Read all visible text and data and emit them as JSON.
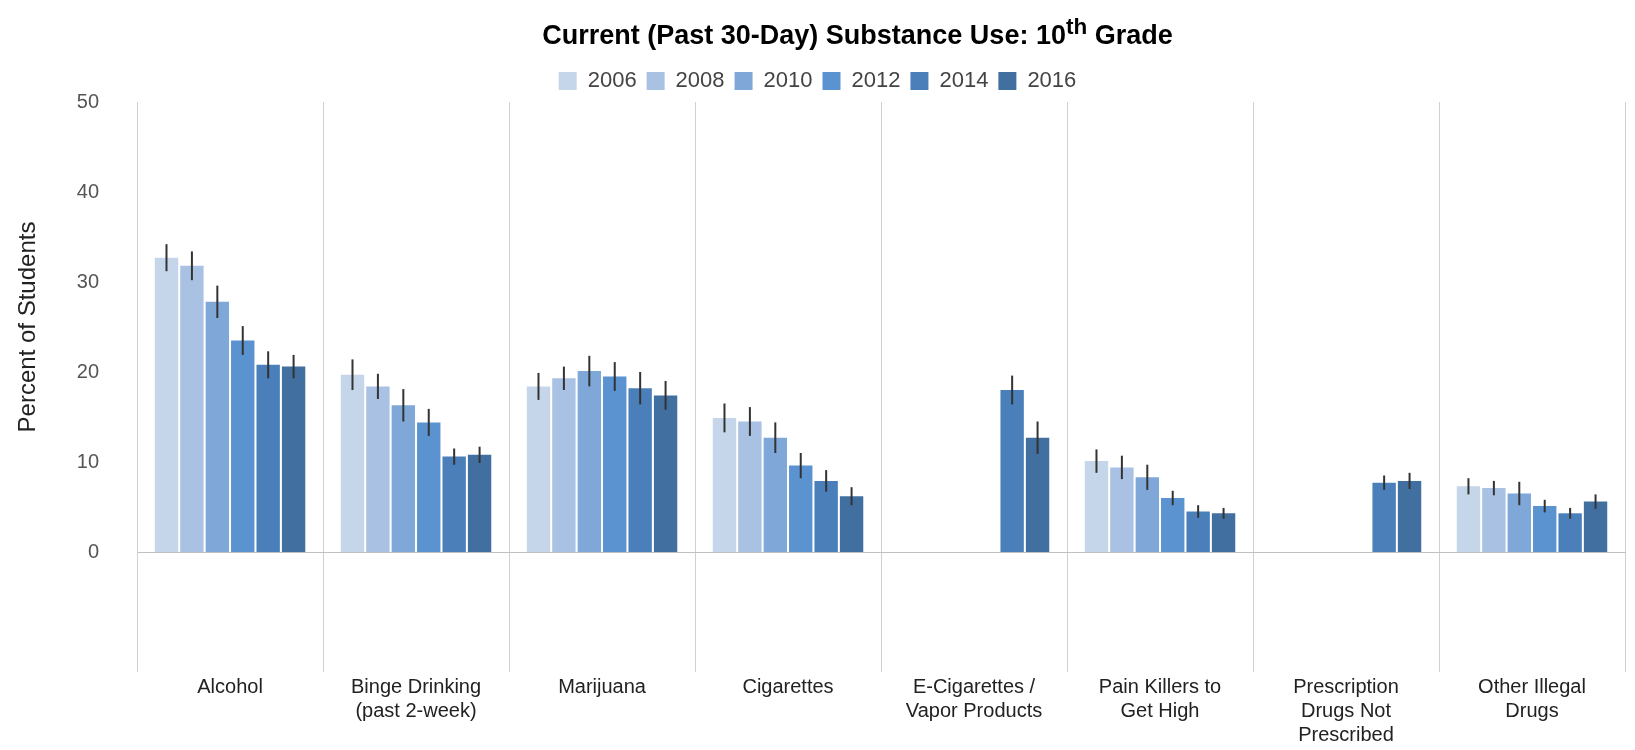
{
  "chart_data": {
    "type": "bar",
    "title": "Current (Past 30-Day) Substance Use: 10$^{th}$ Grade",
    "ylabel": "Percent of Students",
    "categories": [
      "Alcohol",
      "Binge Drinking (past 2-week)",
      "Marijuana",
      "Cigarettes",
      "E-Cigarettes / Vapor Products",
      "Pain Killers to Get High",
      "Prescription Drugs Not Prescribed",
      "Other Illegal Drugs"
    ],
    "series": [
      {
        "name": "2006",
        "color": "#c5d5ea",
        "values": [
          32.7,
          19.7,
          18.4,
          14.9,
          null,
          10.1,
          null,
          7.3
        ],
        "errors": [
          1.5,
          1.7,
          1.5,
          1.6,
          null,
          1.3,
          null,
          0.9
        ]
      },
      {
        "name": "2008",
        "color": "#a9c2e3",
        "values": [
          31.8,
          18.4,
          19.3,
          14.5,
          null,
          9.4,
          null,
          7.1
        ],
        "errors": [
          1.6,
          1.4,
          1.3,
          1.6,
          null,
          1.3,
          null,
          0.8
        ]
      },
      {
        "name": "2010",
        "color": "#7fa7d8",
        "values": [
          27.8,
          16.3,
          20.1,
          12.7,
          null,
          8.3,
          null,
          6.5
        ],
        "errors": [
          1.8,
          1.8,
          1.7,
          1.7,
          null,
          1.4,
          null,
          1.3
        ]
      },
      {
        "name": "2012",
        "color": "#5b92d0",
        "values": [
          23.5,
          14.4,
          19.5,
          9.6,
          null,
          6.0,
          null,
          5.1
        ],
        "errors": [
          1.6,
          1.5,
          1.6,
          1.4,
          null,
          0.8,
          null,
          0.7
        ]
      },
      {
        "name": "2014",
        "color": "#4a7fba",
        "values": [
          20.8,
          10.6,
          18.2,
          7.9,
          18.0,
          4.5,
          7.7,
          4.3
        ],
        "errors": [
          1.5,
          0.9,
          1.8,
          1.2,
          1.6,
          0.7,
          0.8,
          0.6
        ]
      },
      {
        "name": "2016",
        "color": "#416f9f",
        "values": [
          20.6,
          10.8,
          17.4,
          6.2,
          12.7,
          4.3,
          7.9,
          5.6
        ],
        "errors": [
          1.3,
          0.9,
          1.6,
          1.0,
          1.8,
          0.6,
          0.9,
          0.8
        ]
      }
    ],
    "ylim": [
      0,
      50
    ],
    "yticks": [
      0,
      10,
      20,
      30,
      40,
      50
    ],
    "grid": "x",
    "legend": "top"
  }
}
